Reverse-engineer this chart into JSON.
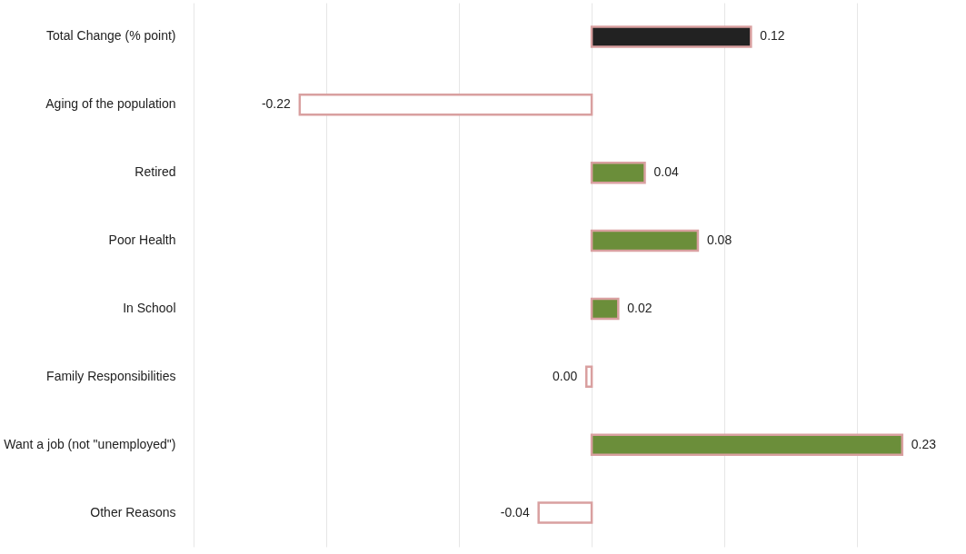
{
  "chart_data": {
    "type": "bar",
    "orientation": "horizontal",
    "categories": [
      "Total Change (% point)",
      "Aging of the population",
      "Retired",
      "Poor Health",
      "In School",
      "Family Responsibilities",
      "Want a job (not \"unemployed\")",
      "Other Reasons"
    ],
    "values": [
      0.12,
      -0.22,
      0.04,
      0.08,
      0.02,
      -0.004,
      0.234,
      -0.04
    ],
    "value_labels": [
      "0.12",
      "-0.22",
      "0.04",
      "0.08",
      "0.02",
      "0.00",
      "0.23",
      "-0.04"
    ],
    "colors": [
      "#222222",
      "#ffffff",
      "#6b8e3a",
      "#6b8e3a",
      "#6b8e3a",
      "#ffffff",
      "#6b8e3a",
      "#ffffff"
    ],
    "xlim": [
      -0.3,
      0.28
    ],
    "xticks": [
      {
        "value": -0.3,
        "label": null
      },
      {
        "value": -0.2,
        "label": null
      },
      {
        "value": -0.1,
        "label": null
      },
      {
        "value": 0,
        "label": null
      },
      {
        "value": 0.1,
        "label": null
      },
      {
        "value": 0.2,
        "label": null
      }
    ],
    "tick_labels": "y",
    "grid": "x"
  }
}
